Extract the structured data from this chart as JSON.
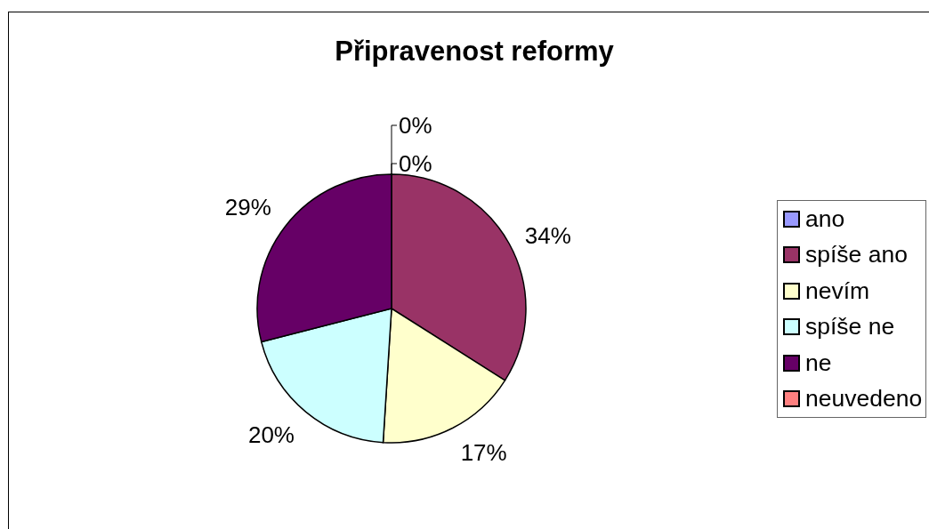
{
  "chart_data": {
    "type": "pie",
    "title": "Připravenost reformy",
    "categories": [
      "ano",
      "spíše ano",
      "nevím",
      "spíše ne",
      "ne",
      "neuvedeno"
    ],
    "values": [
      0,
      34,
      17,
      20,
      29,
      0
    ],
    "colors": [
      "#9999ff",
      "#993366",
      "#ffffcc",
      "#ccffff",
      "#660066",
      "#ff8080"
    ],
    "value_labels": [
      "0%",
      "34%",
      "17%",
      "20%",
      "29%",
      "0%"
    ],
    "legend": "right"
  }
}
